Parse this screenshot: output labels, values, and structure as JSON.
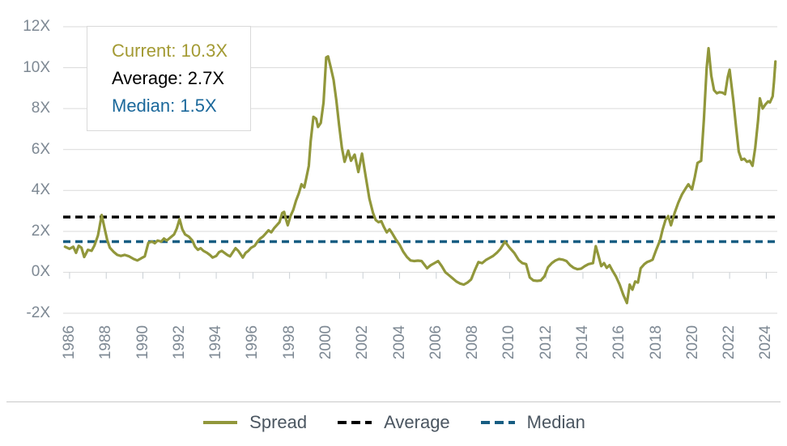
{
  "style": {
    "background": "#ffffff",
    "grid_color": "#dadada",
    "tick_color": "#c9cfd4",
    "axis_label_color": "#7d8893",
    "legend_text_color": "#4b5661",
    "separator_color": "#c9c9c9",
    "box_border_color": "#d9d9d9"
  },
  "stats": {
    "lines": [
      {
        "name": "current",
        "text": "Current: 10.3X",
        "color": "#a39a33"
      },
      {
        "name": "average",
        "text": "Average: 2.7X",
        "color": "#000000"
      },
      {
        "name": "median",
        "text": "Median: 1.5X",
        "color": "#1b689b"
      }
    ]
  },
  "legend": {
    "items": [
      {
        "label": "Spread",
        "style": "solid",
        "color": "#91973b"
      },
      {
        "label": "Average",
        "style": "dashed",
        "color": "#000000"
      },
      {
        "label": "Median",
        "style": "dashed",
        "color": "#175d82"
      }
    ]
  },
  "chart_data": {
    "type": "line",
    "title": "",
    "xlabel": "",
    "ylabel": "",
    "xlim": [
      1985.65,
      2024.6
    ],
    "ylim": [
      -2,
      12
    ],
    "grid": "horizontal",
    "legend_position": "bottom",
    "y_ticks": [
      {
        "label": "12X",
        "value": 12
      },
      {
        "label": "10X",
        "value": 10
      },
      {
        "label": "8X",
        "value": 8
      },
      {
        "label": "6X",
        "value": 6
      },
      {
        "label": "4X",
        "value": 4
      },
      {
        "label": "2X",
        "value": 2
      },
      {
        "label": "0X",
        "value": 0
      },
      {
        "label": "-2X",
        "value": -2
      }
    ],
    "x_ticks": [
      1986,
      1988,
      1990,
      1992,
      1994,
      1996,
      1998,
      2000,
      2002,
      2004,
      2006,
      2008,
      2010,
      2012,
      2014,
      2016,
      2018,
      2020,
      2022,
      2024
    ],
    "series": [
      {
        "name": "Spread",
        "style": "solid",
        "color": "#91973b",
        "points": [
          [
            1985.75,
            1.25
          ],
          [
            1986,
            1.15
          ],
          [
            1986.2,
            1.25
          ],
          [
            1986.35,
            0.95
          ],
          [
            1986.5,
            1.3
          ],
          [
            1986.65,
            1.2
          ],
          [
            1986.8,
            0.75
          ],
          [
            1987,
            1.1
          ],
          [
            1987.2,
            1.05
          ],
          [
            1987.35,
            1.3
          ],
          [
            1987.55,
            1.8
          ],
          [
            1987.75,
            2.8
          ],
          [
            1987.9,
            2.2
          ],
          [
            1988.05,
            1.6
          ],
          [
            1988.2,
            1.2
          ],
          [
            1988.4,
            1.0
          ],
          [
            1988.6,
            0.85
          ],
          [
            1988.8,
            0.8
          ],
          [
            1989,
            0.85
          ],
          [
            1989.25,
            0.78
          ],
          [
            1989.5,
            0.65
          ],
          [
            1989.7,
            0.58
          ],
          [
            1989.9,
            0.68
          ],
          [
            1990.1,
            0.78
          ],
          [
            1990.3,
            1.45
          ],
          [
            1990.5,
            1.5
          ],
          [
            1990.65,
            1.42
          ],
          [
            1990.8,
            1.55
          ],
          [
            1991,
            1.5
          ],
          [
            1991.15,
            1.65
          ],
          [
            1991.3,
            1.55
          ],
          [
            1991.5,
            1.7
          ],
          [
            1991.7,
            1.85
          ],
          [
            1991.85,
            2.15
          ],
          [
            1992,
            2.6
          ],
          [
            1992.15,
            2.1
          ],
          [
            1992.3,
            1.85
          ],
          [
            1992.5,
            1.75
          ],
          [
            1992.7,
            1.55
          ],
          [
            1992.85,
            1.25
          ],
          [
            1993,
            1.1
          ],
          [
            1993.15,
            1.18
          ],
          [
            1993.3,
            1.05
          ],
          [
            1993.5,
            0.95
          ],
          [
            1993.65,
            0.85
          ],
          [
            1993.8,
            0.72
          ],
          [
            1994,
            0.8
          ],
          [
            1994.15,
            0.98
          ],
          [
            1994.3,
            1.05
          ],
          [
            1994.45,
            0.95
          ],
          [
            1994.6,
            0.85
          ],
          [
            1994.75,
            0.78
          ],
          [
            1994.9,
            0.98
          ],
          [
            1995.05,
            1.18
          ],
          [
            1995.2,
            1.05
          ],
          [
            1995.35,
            0.85
          ],
          [
            1995.45,
            0.72
          ],
          [
            1995.6,
            0.95
          ],
          [
            1995.75,
            1.05
          ],
          [
            1995.9,
            1.2
          ],
          [
            1996.1,
            1.3
          ],
          [
            1996.25,
            1.5
          ],
          [
            1996.4,
            1.65
          ],
          [
            1996.55,
            1.75
          ],
          [
            1996.7,
            1.9
          ],
          [
            1996.85,
            2.05
          ],
          [
            1997,
            1.95
          ],
          [
            1997.15,
            2.15
          ],
          [
            1997.3,
            2.3
          ],
          [
            1997.45,
            2.45
          ],
          [
            1997.6,
            2.9
          ],
          [
            1997.7,
            2.95
          ],
          [
            1997.8,
            2.6
          ],
          [
            1997.9,
            2.3
          ],
          [
            1998.05,
            2.75
          ],
          [
            1998.2,
            3.05
          ],
          [
            1998.35,
            3.5
          ],
          [
            1998.5,
            3.85
          ],
          [
            1998.65,
            4.3
          ],
          [
            1998.8,
            4.15
          ],
          [
            1998.9,
            4.55
          ],
          [
            1999.05,
            5.2
          ],
          [
            1999.15,
            6.4
          ],
          [
            1999.3,
            7.6
          ],
          [
            1999.45,
            7.5
          ],
          [
            1999.55,
            7.1
          ],
          [
            1999.7,
            7.3
          ],
          [
            1999.85,
            8.3
          ],
          [
            2000,
            10.5
          ],
          [
            2000.1,
            10.55
          ],
          [
            2000.25,
            10.0
          ],
          [
            2000.4,
            9.4
          ],
          [
            2000.55,
            8.4
          ],
          [
            2000.7,
            7.2
          ],
          [
            2000.85,
            6.1
          ],
          [
            2001,
            5.4
          ],
          [
            2001.2,
            5.95
          ],
          [
            2001.35,
            5.45
          ],
          [
            2001.55,
            5.75
          ],
          [
            2001.75,
            4.9
          ],
          [
            2001.95,
            5.8
          ],
          [
            2002.15,
            4.7
          ],
          [
            2002.35,
            3.6
          ],
          [
            2002.55,
            2.9
          ],
          [
            2002.7,
            2.55
          ],
          [
            2002.85,
            2.45
          ],
          [
            2003,
            2.5
          ],
          [
            2003.15,
            2.2
          ],
          [
            2003.3,
            1.95
          ],
          [
            2003.45,
            2.1
          ],
          [
            2003.6,
            1.9
          ],
          [
            2003.8,
            1.6
          ],
          [
            2004,
            1.35
          ],
          [
            2004.2,
            1.0
          ],
          [
            2004.4,
            0.75
          ],
          [
            2004.6,
            0.58
          ],
          [
            2004.8,
            0.55
          ],
          [
            2005,
            0.57
          ],
          [
            2005.2,
            0.55
          ],
          [
            2005.5,
            0.2
          ],
          [
            2005.7,
            0.35
          ],
          [
            2005.9,
            0.45
          ],
          [
            2006.1,
            0.55
          ],
          [
            2006.3,
            0.3
          ],
          [
            2006.5,
            0.0
          ],
          [
            2006.7,
            -0.15
          ],
          [
            2006.9,
            -0.3
          ],
          [
            2007.1,
            -0.45
          ],
          [
            2007.3,
            -0.55
          ],
          [
            2007.5,
            -0.6
          ],
          [
            2007.7,
            -0.5
          ],
          [
            2007.9,
            -0.35
          ],
          [
            2008.1,
            0.1
          ],
          [
            2008.3,
            0.5
          ],
          [
            2008.5,
            0.45
          ],
          [
            2008.7,
            0.6
          ],
          [
            2008.9,
            0.7
          ],
          [
            2009.1,
            0.8
          ],
          [
            2009.3,
            0.95
          ],
          [
            2009.5,
            1.15
          ],
          [
            2009.75,
            1.5
          ],
          [
            2010,
            1.2
          ],
          [
            2010.25,
            0.95
          ],
          [
            2010.5,
            0.6
          ],
          [
            2010.7,
            0.45
          ],
          [
            2010.9,
            0.4
          ],
          [
            2011.1,
            -0.25
          ],
          [
            2011.3,
            -0.4
          ],
          [
            2011.5,
            -0.42
          ],
          [
            2011.7,
            -0.4
          ],
          [
            2011.9,
            -0.2
          ],
          [
            2012.1,
            0.25
          ],
          [
            2012.3,
            0.45
          ],
          [
            2012.5,
            0.58
          ],
          [
            2012.7,
            0.65
          ],
          [
            2012.9,
            0.62
          ],
          [
            2013.1,
            0.55
          ],
          [
            2013.3,
            0.35
          ],
          [
            2013.5,
            0.22
          ],
          [
            2013.7,
            0.15
          ],
          [
            2013.9,
            0.18
          ],
          [
            2014.1,
            0.3
          ],
          [
            2014.3,
            0.4
          ],
          [
            2014.55,
            0.45
          ],
          [
            2014.7,
            1.28
          ],
          [
            2014.85,
            0.8
          ],
          [
            2015,
            0.3
          ],
          [
            2015.15,
            0.45
          ],
          [
            2015.3,
            0.22
          ],
          [
            2015.45,
            0.35
          ],
          [
            2015.6,
            0.1
          ],
          [
            2015.8,
            -0.2
          ],
          [
            2016,
            -0.6
          ],
          [
            2016.2,
            -1.1
          ],
          [
            2016.4,
            -1.5
          ],
          [
            2016.55,
            -0.6
          ],
          [
            2016.7,
            -0.85
          ],
          [
            2016.85,
            -0.45
          ],
          [
            2017,
            -0.5
          ],
          [
            2017.15,
            0.2
          ],
          [
            2017.35,
            0.4
          ],
          [
            2017.5,
            0.5
          ],
          [
            2017.65,
            0.55
          ],
          [
            2017.8,
            0.62
          ],
          [
            2018,
            1.1
          ],
          [
            2018.2,
            1.55
          ],
          [
            2018.35,
            2.1
          ],
          [
            2018.5,
            2.55
          ],
          [
            2018.65,
            2.75
          ],
          [
            2018.8,
            2.3
          ],
          [
            2019,
            2.9
          ],
          [
            2019.2,
            3.4
          ],
          [
            2019.4,
            3.8
          ],
          [
            2019.6,
            4.1
          ],
          [
            2019.75,
            4.3
          ],
          [
            2019.95,
            4.05
          ],
          [
            2020.1,
            4.65
          ],
          [
            2020.25,
            5.35
          ],
          [
            2020.45,
            5.45
          ],
          [
            2020.6,
            7.5
          ],
          [
            2020.75,
            10.0
          ],
          [
            2020.85,
            10.95
          ],
          [
            2021,
            9.6
          ],
          [
            2021.15,
            8.9
          ],
          [
            2021.3,
            8.75
          ],
          [
            2021.45,
            8.8
          ],
          [
            2021.6,
            8.78
          ],
          [
            2021.75,
            8.7
          ],
          [
            2021.9,
            9.55
          ],
          [
            2022,
            9.9
          ],
          [
            2022.2,
            8.4
          ],
          [
            2022.35,
            7.1
          ],
          [
            2022.5,
            5.9
          ],
          [
            2022.65,
            5.5
          ],
          [
            2022.8,
            5.55
          ],
          [
            2022.95,
            5.4
          ],
          [
            2023.1,
            5.45
          ],
          [
            2023.25,
            5.2
          ],
          [
            2023.4,
            6.1
          ],
          [
            2023.55,
            7.4
          ],
          [
            2023.65,
            8.5
          ],
          [
            2023.8,
            8.0
          ],
          [
            2023.95,
            8.2
          ],
          [
            2024.1,
            8.35
          ],
          [
            2024.2,
            8.3
          ],
          [
            2024.35,
            8.6
          ],
          [
            2024.42,
            9.3
          ],
          [
            2024.5,
            10.3
          ]
        ]
      },
      {
        "name": "Average",
        "style": "dashed",
        "color": "#000000",
        "value": 2.7
      },
      {
        "name": "Median",
        "style": "dashed",
        "color": "#175d82",
        "value": 1.5
      }
    ]
  }
}
